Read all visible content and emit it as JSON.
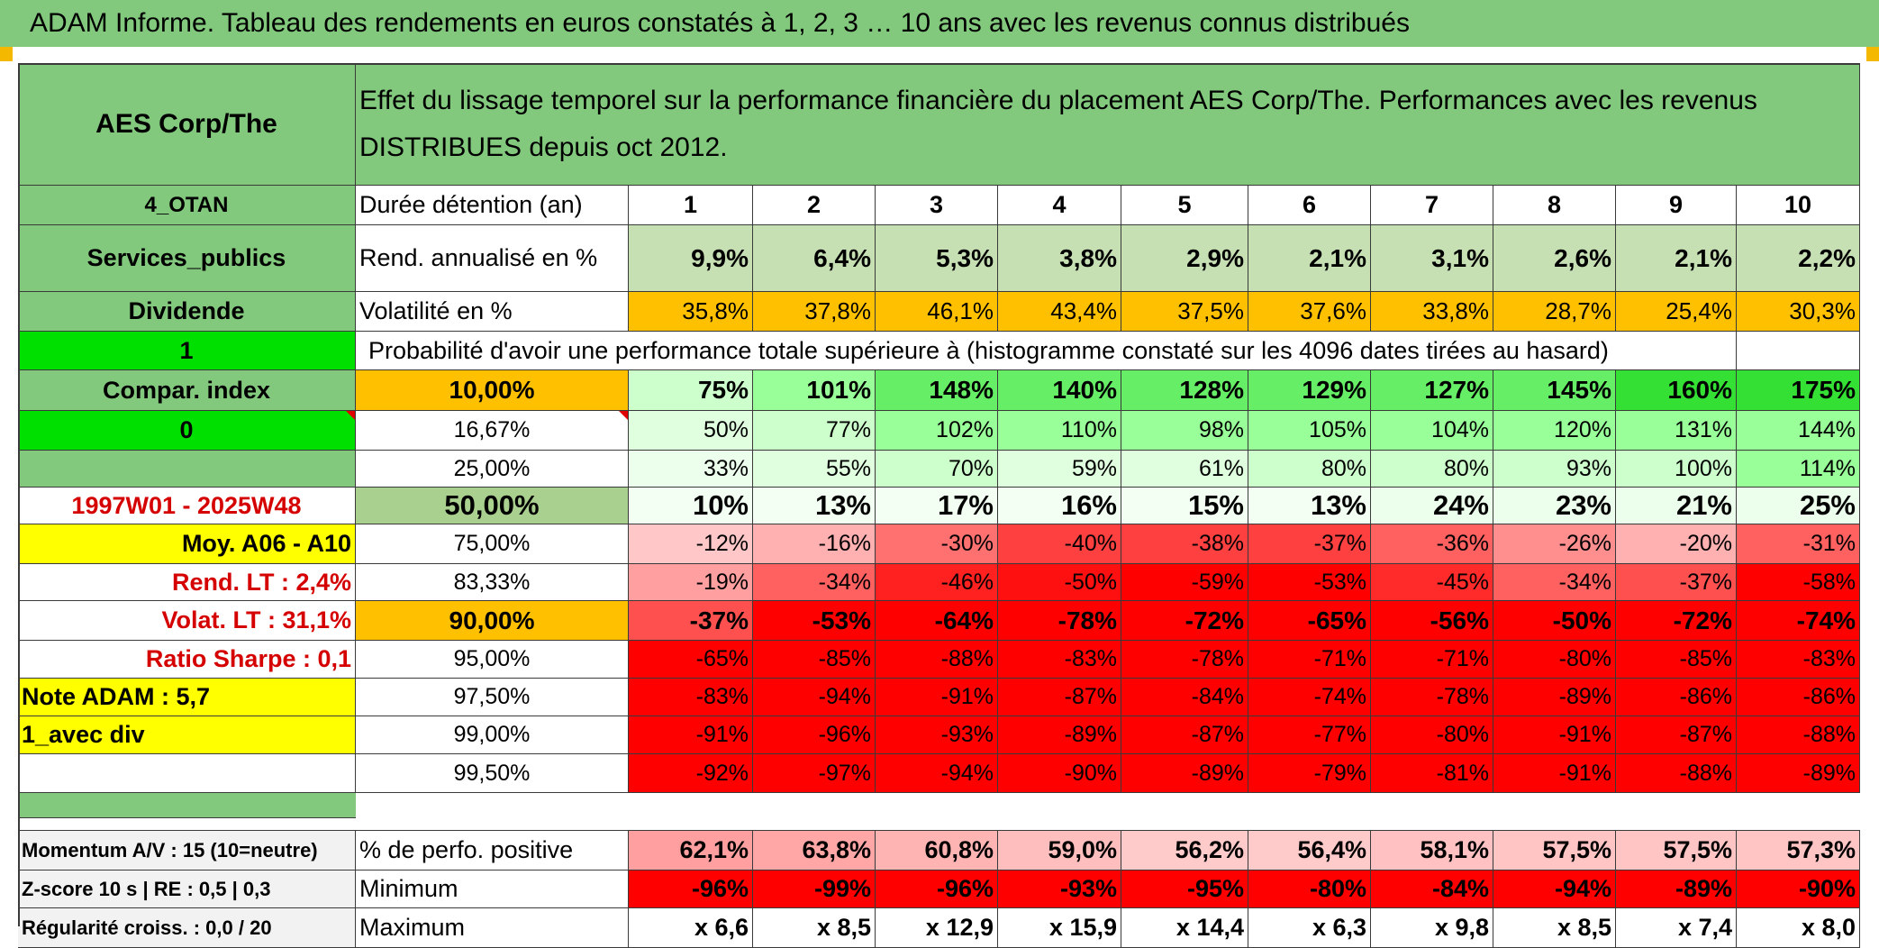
{
  "title": "ADAM Informe. Tableau des rendements en euros constatés à 1, 2, 3 … 10 ans avec les revenus connus distribués",
  "colors": {
    "header_green": "#82c97d",
    "bright_green": "#00e000",
    "yellow": "#ffff00",
    "orange": "#ffc000",
    "red": "#ff0000",
    "accent_red_text": "#d50000"
  },
  "left_panel": {
    "asset_name": "AES Corp/The",
    "category": "4_OTAN",
    "sector": "Services_publics",
    "income_type": "Dividende",
    "flag_1": "1",
    "compar_index": "Compar. index",
    "flag_0": "0",
    "period": "1997W01 - 2025W48",
    "moy": "Moy. A06 - A10",
    "rend_lt": "Rend. LT :   2,4%",
    "volat_lt": "Volat. LT :   31,1%",
    "sharpe": "Ratio Sharpe :    0,1",
    "note": "Note ADAM : 5,7",
    "div_mode": "1_avec div",
    "momentum": "Momentum A/V : 15 (10=neutre)",
    "zscore": "Z-score 10 s | RE : 0,5 | 0,3",
    "regularite": "Régularité croiss. : 0,0 / 20"
  },
  "description": "Effet du lissage temporel sur la performance financière du placement AES Corp/The. Performances avec les revenus DISTRIBUES depuis oct 2012.",
  "row_labels": {
    "duration": "Durée détention (an)",
    "annualized": "Rend. annualisé en %",
    "volatility": "Volatilité en %",
    "probability_header": "Probabilité d'avoir une performance totale supérieure à (histogramme constaté sur les 4096 dates tirées au hasard)",
    "positive": "% de perfo. positive",
    "minimum": "Minimum",
    "maximum": "Maximum"
  },
  "years": [
    "1",
    "2",
    "3",
    "4",
    "5",
    "6",
    "7",
    "8",
    "9",
    "10"
  ],
  "annualized_returns": [
    "9,9%",
    "6,4%",
    "5,3%",
    "3,8%",
    "2,9%",
    "2,1%",
    "3,1%",
    "2,6%",
    "2,1%",
    "2,2%"
  ],
  "volatility": [
    "35,8%",
    "37,8%",
    "46,1%",
    "43,4%",
    "37,5%",
    "37,6%",
    "33,8%",
    "28,7%",
    "25,4%",
    "30,3%"
  ],
  "quantiles": [
    {
      "prob": "10,00%",
      "values": [
        "75%",
        "101%",
        "148%",
        "140%",
        "128%",
        "129%",
        "127%",
        "145%",
        "160%",
        "175%"
      ]
    },
    {
      "prob": "16,67%",
      "values": [
        "50%",
        "77%",
        "102%",
        "110%",
        "98%",
        "105%",
        "104%",
        "120%",
        "131%",
        "144%"
      ]
    },
    {
      "prob": "25,00%",
      "values": [
        "33%",
        "55%",
        "70%",
        "59%",
        "61%",
        "80%",
        "80%",
        "93%",
        "100%",
        "114%"
      ]
    },
    {
      "prob": "50,00%",
      "values": [
        "10%",
        "13%",
        "17%",
        "16%",
        "15%",
        "13%",
        "24%",
        "23%",
        "21%",
        "25%"
      ]
    },
    {
      "prob": "75,00%",
      "values": [
        "-12%",
        "-16%",
        "-30%",
        "-40%",
        "-38%",
        "-37%",
        "-36%",
        "-26%",
        "-20%",
        "-31%"
      ]
    },
    {
      "prob": "83,33%",
      "values": [
        "-19%",
        "-34%",
        "-46%",
        "-50%",
        "-59%",
        "-53%",
        "-45%",
        "-34%",
        "-37%",
        "-58%"
      ]
    },
    {
      "prob": "90,00%",
      "values": [
        "-37%",
        "-53%",
        "-64%",
        "-78%",
        "-72%",
        "-65%",
        "-56%",
        "-50%",
        "-72%",
        "-74%"
      ]
    },
    {
      "prob": "95,00%",
      "values": [
        "-65%",
        "-85%",
        "-88%",
        "-83%",
        "-78%",
        "-71%",
        "-71%",
        "-80%",
        "-85%",
        "-83%"
      ]
    },
    {
      "prob": "97,50%",
      "values": [
        "-83%",
        "-94%",
        "-91%",
        "-87%",
        "-84%",
        "-74%",
        "-78%",
        "-89%",
        "-86%",
        "-86%"
      ]
    },
    {
      "prob": "99,00%",
      "values": [
        "-91%",
        "-96%",
        "-93%",
        "-89%",
        "-87%",
        "-77%",
        "-80%",
        "-91%",
        "-87%",
        "-88%"
      ]
    },
    {
      "prob": "99,50%",
      "values": [
        "-92%",
        "-97%",
        "-94%",
        "-90%",
        "-89%",
        "-79%",
        "-81%",
        "-91%",
        "-88%",
        "-89%"
      ]
    }
  ],
  "positive_pct": [
    "62,1%",
    "63,8%",
    "60,8%",
    "59,0%",
    "56,2%",
    "56,4%",
    "58,1%",
    "57,5%",
    "57,5%",
    "57,3%"
  ],
  "minimum": [
    "-96%",
    "-99%",
    "-96%",
    "-93%",
    "-95%",
    "-80%",
    "-84%",
    "-94%",
    "-89%",
    "-90%"
  ],
  "maximum": [
    "x 6,6",
    "x 8,5",
    "x 12,9",
    "x 15,9",
    "x 14,4",
    "x 6,3",
    "x 9,8",
    "x 8,5",
    "x 7,4",
    "x 8,0"
  ]
}
